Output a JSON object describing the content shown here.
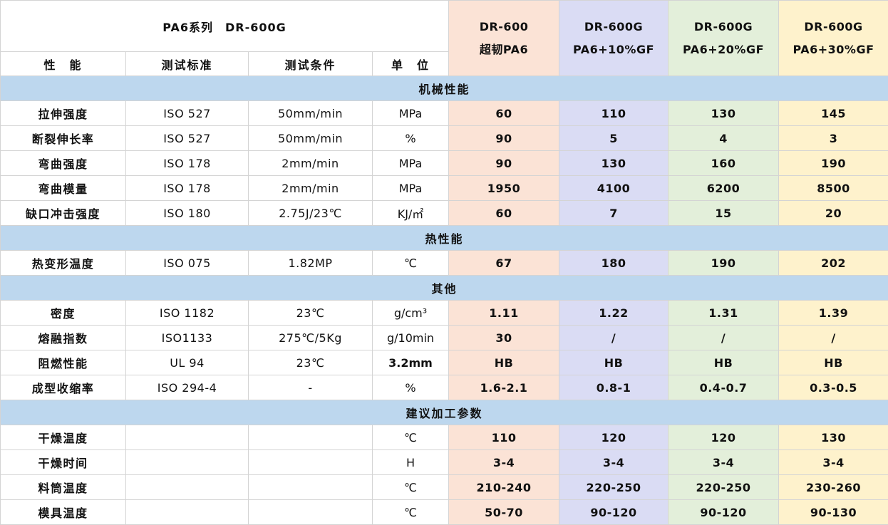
{
  "header": {
    "series": "PA6系列",
    "model": "DR-600G"
  },
  "columns": {
    "property": "性　能",
    "standard": "测试标准",
    "condition": "测试条件",
    "unit": "单　位"
  },
  "grades": [
    {
      "name": "DR-600",
      "sub": "超韧PA6"
    },
    {
      "name": "DR-600G",
      "sub": "PA6+10%GF"
    },
    {
      "name": "DR-600G",
      "sub": "PA6+20%GF"
    },
    {
      "name": "DR-600G",
      "sub": "PA6+30%GF"
    }
  ],
  "sections": [
    {
      "title": "机械性能",
      "rows": [
        {
          "prop": "拉伸强度",
          "std": "ISO 527",
          "cond": "50mm/min",
          "unit": "MPa",
          "vals": [
            "60",
            "110",
            "130",
            "145"
          ]
        },
        {
          "prop": "断裂伸长率",
          "std": "ISO 527",
          "cond": "50mm/min",
          "unit": "%",
          "vals": [
            "90",
            "5",
            "4",
            "3"
          ]
        },
        {
          "prop": "弯曲强度",
          "std": "ISO 178",
          "cond": "2mm/min",
          "unit": "MPa",
          "vals": [
            "90",
            "130",
            "160",
            "190"
          ]
        },
        {
          "prop": "弯曲模量",
          "std": "ISO 178",
          "cond": "2mm/min",
          "unit": "MPa",
          "vals": [
            "1950",
            "4100",
            "6200",
            "8500"
          ]
        },
        {
          "prop": "缺口冲击强度",
          "std": "ISO 180",
          "cond": "2.75J/23℃",
          "unit": "KJ/㎡",
          "vals": [
            "60",
            "7",
            "15",
            "20"
          ]
        }
      ]
    },
    {
      "title": "热性能",
      "rows": [
        {
          "prop": "热变形温度",
          "std": "ISO 075",
          "cond": "1.82MP",
          "unit": "℃",
          "vals": [
            "67",
            "180",
            "190",
            "202"
          ]
        }
      ]
    },
    {
      "title": "其他",
      "rows": [
        {
          "prop": "密度",
          "std": "ISO 1182",
          "cond": "23℃",
          "unit": "g/cm³",
          "vals": [
            "1.11",
            "1.22",
            "1.31",
            "1.39"
          ]
        },
        {
          "prop": "熔融指数",
          "std": "ISO1133",
          "cond": "275℃/5Kg",
          "unit": "g/10min",
          "vals": [
            "30",
            "/",
            "/",
            "/"
          ]
        },
        {
          "prop": "阻燃性能",
          "std": "UL 94",
          "cond": "23℃",
          "unit": "3.2mm",
          "unit_bold": true,
          "vals": [
            "HB",
            "HB",
            "HB",
            "HB"
          ]
        },
        {
          "prop": "成型收缩率",
          "std": "ISO 294-4",
          "cond": "-",
          "unit": "%",
          "vals": [
            "1.6-2.1",
            "0.8-1",
            "0.4-0.7",
            "0.3-0.5"
          ]
        }
      ]
    },
    {
      "title": "建议加工参数",
      "rows": [
        {
          "prop": "干燥温度",
          "std": "",
          "cond": "",
          "unit": "℃",
          "vals": [
            "110",
            "120",
            "120",
            "130"
          ]
        },
        {
          "prop": "干燥时间",
          "std": "",
          "cond": "",
          "unit": "H",
          "vals": [
            "3-4",
            "3-4",
            "3-4",
            "3-4"
          ]
        },
        {
          "prop": "料筒温度",
          "std": "",
          "cond": "",
          "unit": "℃",
          "vals": [
            "210-240",
            "220-250",
            "220-250",
            "230-260"
          ]
        },
        {
          "prop": "模具温度",
          "std": "",
          "cond": "",
          "unit": "℃",
          "vals": [
            "50-70",
            "90-120",
            "90-120",
            "90-130"
          ]
        }
      ]
    }
  ],
  "colors": {
    "section_band": "#bdd7ee",
    "grade_bg": [
      "#fbe3d6",
      "#dadcf4",
      "#e3efda",
      "#fef2cc"
    ]
  }
}
